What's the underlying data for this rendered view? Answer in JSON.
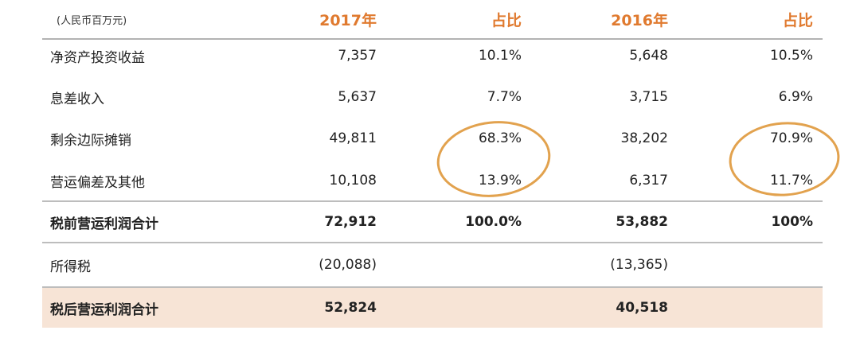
{
  "header": {
    "unit": "(人民币百万元)",
    "col1": "2017年",
    "col2": "占比",
    "col3": "2016年",
    "col4": "占比"
  },
  "rows": [
    {
      "label": "净资产投资收益",
      "v2017": "7,357",
      "p2017": "10.1%",
      "v2016": "5,648",
      "p2016": "10.5%"
    },
    {
      "label": "息差收入",
      "v2017": "5,637",
      "p2017": "7.7%",
      "v2016": "3,715",
      "p2016": "6.9%"
    },
    {
      "label": "剩余边际摊销",
      "v2017": "49,811",
      "p2017": "68.3%",
      "v2016": "38,202",
      "p2016": "70.9%"
    },
    {
      "label": "营运偏差及其他",
      "v2017": "10,108",
      "p2017": "13.9%",
      "v2016": "6,317",
      "p2016": "11.7%"
    },
    {
      "label": "税前营运利润合计",
      "v2017": "72,912",
      "p2017": "100.0%",
      "v2016": "53,882",
      "p2016": "100%"
    },
    {
      "label": "所得税",
      "v2017": "(20,088)",
      "p2017": "",
      "v2016": "(13,365)",
      "p2016": ""
    },
    {
      "label": "税后营运利润合计",
      "v2017": "52,824",
      "p2017": "",
      "v2016": "40,518",
      "p2016": ""
    }
  ],
  "colors": {
    "accent": "#e07a2f",
    "highlight_row": "#f7e4d6",
    "circle": "#e2a24e"
  }
}
